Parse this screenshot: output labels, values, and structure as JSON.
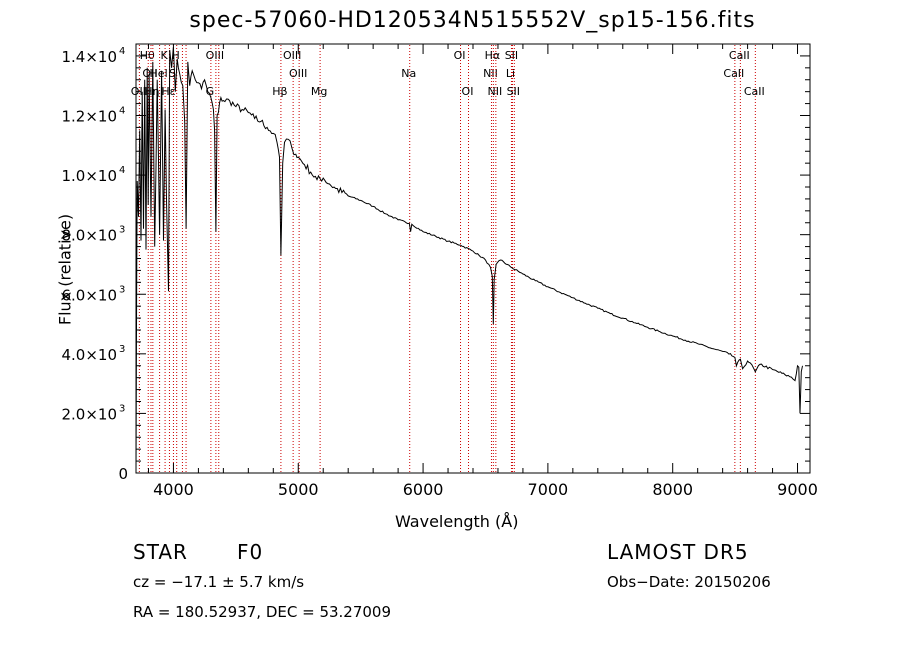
{
  "chart_data": {
    "type": "line",
    "title": "spec-57060-HD120534N515552V_sp15-156.fits",
    "xlabel": "Wavelength (Å)",
    "ylabel": "Flux (relative)",
    "xlim": [
      3700,
      9100
    ],
    "ylim": [
      0,
      14400
    ],
    "xticks": [
      {
        "v": 4000,
        "label": "4000"
      },
      {
        "v": 5000,
        "label": "5000"
      },
      {
        "v": 6000,
        "label": "6000"
      },
      {
        "v": 7000,
        "label": "7000"
      },
      {
        "v": 8000,
        "label": "8000"
      },
      {
        "v": 9000,
        "label": "9000"
      }
    ],
    "yticks": [
      {
        "v": 0,
        "m": "0",
        "e": ""
      },
      {
        "v": 2000,
        "m": "2.0×10",
        "e": "3"
      },
      {
        "v": 4000,
        "m": "4.0×10",
        "e": "3"
      },
      {
        "v": 6000,
        "m": "6.0×10",
        "e": "3"
      },
      {
        "v": 8000,
        "m": "8.0×10",
        "e": "3"
      },
      {
        "v": 10000,
        "m": "1.0×10",
        "e": "4"
      },
      {
        "v": 12000,
        "m": "1.2×10",
        "e": "4"
      },
      {
        "v": 14000,
        "m": "1.4×10",
        "e": "4"
      }
    ],
    "series": [
      {
        "color": "#000000",
        "x": [
          3700,
          3705,
          3710,
          3720,
          3730,
          3740,
          3750,
          3760,
          3770,
          3780,
          3790,
          3798,
          3805,
          3820,
          3835,
          3850,
          3870,
          3889,
          3905,
          3920,
          3933,
          3945,
          3960,
          3970,
          3985,
          4000,
          4015,
          4030,
          4050,
          4075,
          4090,
          4101,
          4115,
          4130,
          4150,
          4175,
          4200,
          4225,
          4250,
          4275,
          4300,
          4320,
          4330,
          4340,
          4350,
          4360,
          4380,
          4400,
          4450,
          4500,
          4550,
          4600,
          4650,
          4700,
          4750,
          4800,
          4830,
          4850,
          4861,
          4875,
          4890,
          4920,
          4950,
          4980,
          5000,
          5050,
          5100,
          5150,
          5200,
          5250,
          5300,
          5400,
          5500,
          5600,
          5700,
          5800,
          5890,
          5900,
          5910,
          6000,
          6100,
          6200,
          6300,
          6400,
          6450,
          6500,
          6540,
          6555,
          6563,
          6570,
          6585,
          6620,
          6700,
          6800,
          6900,
          7000,
          7100,
          7200,
          7300,
          7400,
          7500,
          7600,
          7700,
          7800,
          7900,
          8000,
          8100,
          8200,
          8300,
          8400,
          8450,
          8498,
          8510,
          8542,
          8560,
          8600,
          8620,
          8662,
          8700,
          8800,
          8900,
          8950,
          8980,
          9000,
          9010,
          9020,
          9030,
          9040
        ],
        "y": [
          0,
          5800,
          9800,
          8600,
          11500,
          7800,
          12800,
          8200,
          13200,
          7500,
          13600,
          9000,
          13400,
          8600,
          13800,
          7600,
          13200,
          8000,
          13500,
          7800,
          12200,
          9000,
          6100,
          14200,
          13600,
          14300,
          12800,
          13900,
          13400,
          13000,
          11800,
          8200,
          13800,
          13000,
          13500,
          13200,
          13100,
          12900,
          13200,
          12800,
          12600,
          12200,
          11500,
          8100,
          12000,
          12100,
          12600,
          12500,
          12500,
          12300,
          12200,
          12100,
          11900,
          11800,
          11600,
          11400,
          11100,
          10600,
          7300,
          10400,
          11100,
          11200,
          10900,
          10700,
          10600,
          10350,
          10100,
          9850,
          9900,
          9700,
          9550,
          9300,
          9150,
          8950,
          8700,
          8500,
          8380,
          8100,
          8350,
          8100,
          7950,
          7780,
          7650,
          7450,
          7300,
          7150,
          6900,
          6600,
          5000,
          6500,
          7000,
          7150,
          6920,
          6680,
          6450,
          6250,
          6060,
          5880,
          5700,
          5530,
          5350,
          5200,
          5040,
          4890,
          4740,
          4600,
          4460,
          4340,
          4200,
          4080,
          3990,
          3880,
          3600,
          3820,
          3500,
          3760,
          3700,
          3400,
          3650,
          3470,
          3300,
          3220,
          3100,
          3600,
          3550,
          2000,
          3400,
          3600
        ]
      }
    ],
    "line_marks": [
      {
        "x": 3727,
        "label": "OII",
        "row": 2
      },
      {
        "x": 3798,
        "label": "Hθ",
        "row": 0
      },
      {
        "x": 3820,
        "label": "OII",
        "row": 1
      },
      {
        "x": 3835,
        "label": "Hη",
        "row": 2
      },
      {
        "x": 3889,
        "label": "Hel",
        "row": 1
      },
      {
        "x": 3933,
        "label": "K",
        "row": 0
      },
      {
        "x": 3968,
        "label": "Hε",
        "row": 2
      },
      {
        "x": 4000,
        "label": "S",
        "row": 1
      },
      {
        "x": 4026,
        "label": "H",
        "row": 0
      },
      {
        "x": 4072,
        "label": "",
        "row": 0
      },
      {
        "x": 4101,
        "label": "",
        "row": 0
      },
      {
        "x": 4300,
        "label": "G",
        "row": 2
      },
      {
        "x": 4340,
        "label": "OIII",
        "row": 0
      },
      {
        "x": 4363,
        "label": "",
        "row": 0
      },
      {
        "x": 4861,
        "label": "Hβ",
        "row": 2
      },
      {
        "x": 4959,
        "label": "OIII",
        "row": 0
      },
      {
        "x": 5007,
        "label": "OIII",
        "row": 1
      },
      {
        "x": 5175,
        "label": "Mg",
        "row": 2
      },
      {
        "x": 5893,
        "label": "Na",
        "row": 1
      },
      {
        "x": 6300,
        "label": "OI",
        "row": 0
      },
      {
        "x": 6364,
        "label": "OI",
        "row": 2
      },
      {
        "x": 6548,
        "label": "NII",
        "row": 1
      },
      {
        "x": 6563,
        "label": "Hα",
        "row": 0
      },
      {
        "x": 6583,
        "label": "NII",
        "row": 2
      },
      {
        "x": 6708,
        "label": "Li",
        "row": 1
      },
      {
        "x": 6716,
        "label": "SII",
        "row": 0
      },
      {
        "x": 6731,
        "label": "SII",
        "row": 2
      },
      {
        "x": 8498,
        "label": "CaII",
        "row": 1
      },
      {
        "x": 8542,
        "label": "CaII",
        "row": 0
      },
      {
        "x": 8662,
        "label": "CaII",
        "row": 2
      }
    ],
    "colors": {
      "line": "#000000",
      "marks": "#cc0000"
    }
  },
  "info": {
    "class": "STAR",
    "subclass": "F0",
    "survey": "LAMOST DR5",
    "cz": "cz = −17.1 ± 5.7 km/s",
    "obs_date": "Obs−Date: 20150206",
    "radec": "RA = 180.52937, DEC =  53.27009"
  }
}
